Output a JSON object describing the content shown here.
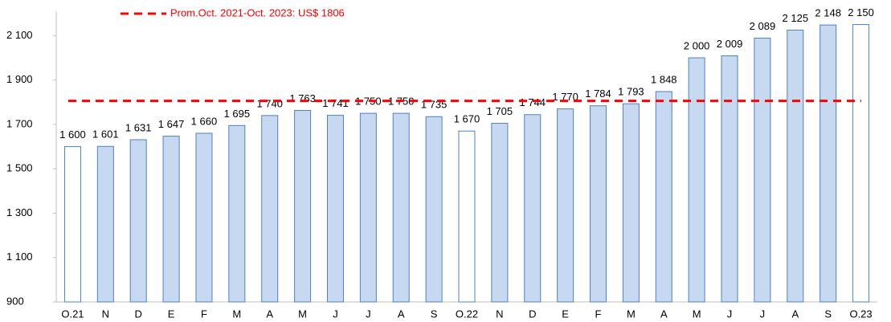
{
  "chart_data": {
    "type": "bar",
    "categories": [
      "O.21",
      "N",
      "D",
      "E",
      "F",
      "M",
      "A",
      "M",
      "J",
      "J",
      "A",
      "S",
      "O.22",
      "N",
      "D",
      "E",
      "F",
      "M",
      "A",
      "M",
      "J",
      "J",
      "A",
      "S",
      "O.23"
    ],
    "values": [
      1600,
      1601,
      1631,
      1647,
      1660,
      1695,
      1740,
      1763,
      1741,
      1750,
      1750,
      1735,
      1670,
      1705,
      1744,
      1770,
      1784,
      1793,
      1848,
      2000,
      2009,
      2089,
      2125,
      2148,
      2150
    ],
    "value_labels": [
      "1 600",
      "1 601",
      "1 631",
      "1 647",
      "1 660",
      "1 695",
      "1 740",
      "1 763",
      "1 741",
      "1 750",
      "1 750",
      "1 735",
      "1 670",
      "1 705",
      "1 744",
      "1 770",
      "1 784",
      "1 793",
      "1 848",
      "2 000",
      "2 009",
      "2 089",
      "2 125",
      "2 148",
      "2 150"
    ],
    "colors": [
      "#ffffff",
      "#c6d9f1",
      "#c6d9f1",
      "#c6d9f1",
      "#c6d9f1",
      "#c6d9f1",
      "#c6d9f1",
      "#c6d9f1",
      "#c6d9f1",
      "#c6d9f1",
      "#c6d9f1",
      "#c6d9f1",
      "#ffffff",
      "#c6d9f1",
      "#c6d9f1",
      "#c6d9f1",
      "#c6d9f1",
      "#c6d9f1",
      "#c6d9f1",
      "#c6d9f1",
      "#c6d9f1",
      "#c6d9f1",
      "#c6d9f1",
      "#c6d9f1",
      "#ffffff"
    ],
    "edge_color": "#4f81bd",
    "ylim": [
      900,
      2210
    ],
    "yticks": [
      900,
      {
        "value": 1100,
        "label": "1 100"
      },
      {
        "value": 1300,
        "label": "1 300"
      },
      {
        "value": 1500,
        "label": "1 500"
      },
      {
        "value": 1700,
        "label": "1 700"
      },
      {
        "value": 1900,
        "label": "1 900"
      },
      {
        "value": 2100,
        "label": "2 100"
      }
    ],
    "reference_line": {
      "value": 1806,
      "label": "Prom.Oct. 2021-Oct. 2023: US$ 1806",
      "color": "#ff0000"
    },
    "grid": false
  }
}
